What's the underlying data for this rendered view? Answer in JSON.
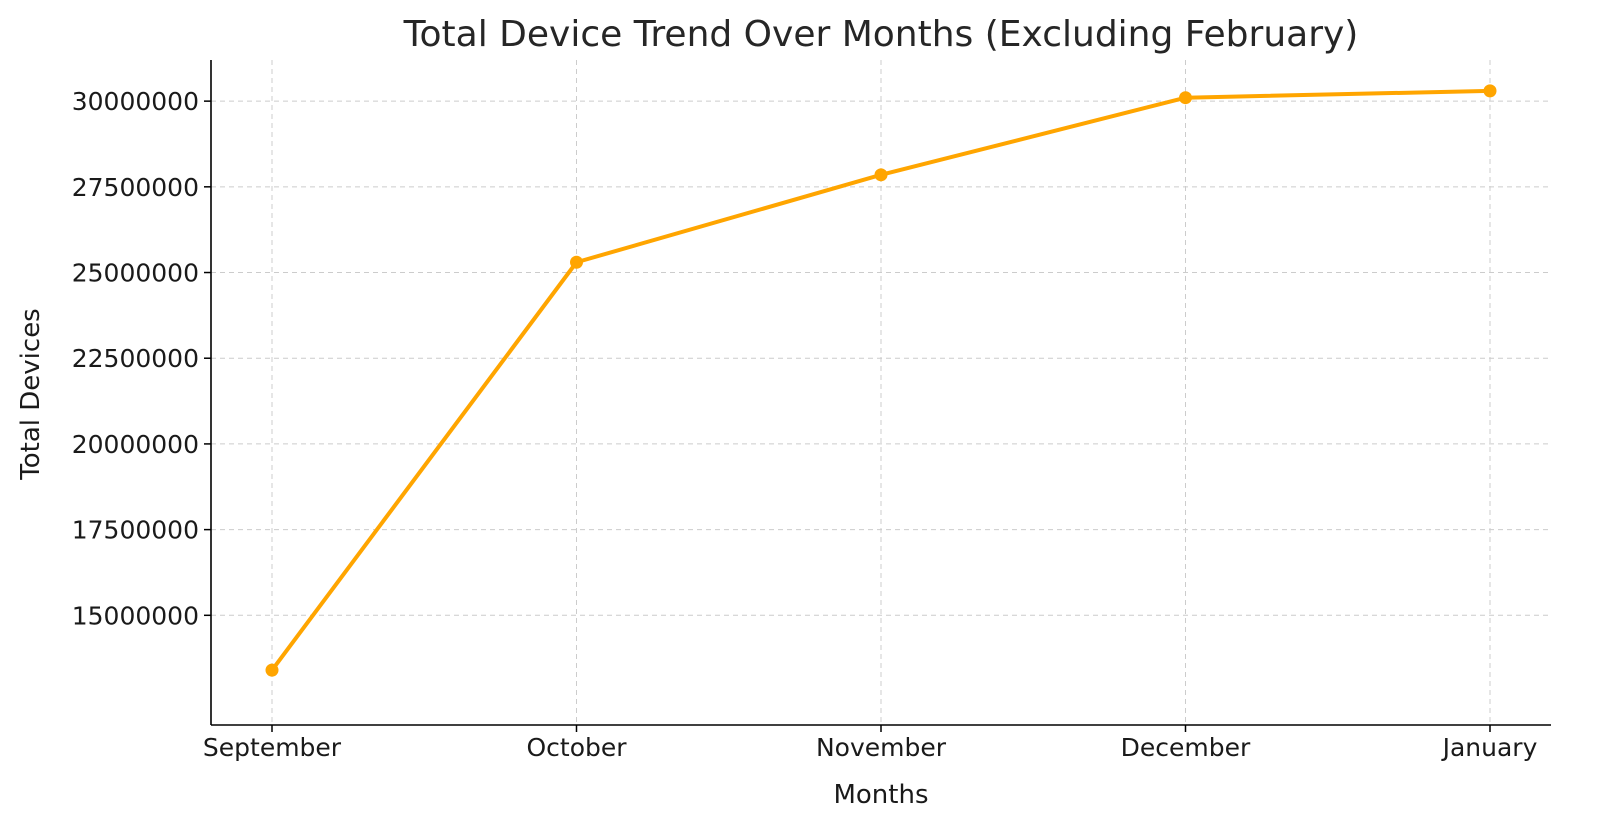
{
  "chart_data": {
    "type": "line",
    "title": "Total Device Trend Over Months (Excluding February)",
    "xlabel": "Months",
    "ylabel": "Total Devices",
    "categories": [
      "September",
      "October",
      "November",
      "December",
      "January"
    ],
    "series": [
      {
        "values": [
          13400000,
          25300000,
          27850000,
          30100000,
          30300000
        ],
        "color": "#FFA500",
        "marker": "circle"
      }
    ],
    "y_ticks": [
      15000000,
      17500000,
      20000000,
      22500000,
      25000000,
      27500000,
      30000000
    ],
    "y_tick_labels": [
      "15000000",
      "17500000",
      "20000000",
      "22500000",
      "25000000",
      "27500000",
      "30000000"
    ],
    "ylim": [
      11800000,
      31200000
    ],
    "grid": true,
    "grid_color": "#cccccc",
    "legend": "none"
  }
}
